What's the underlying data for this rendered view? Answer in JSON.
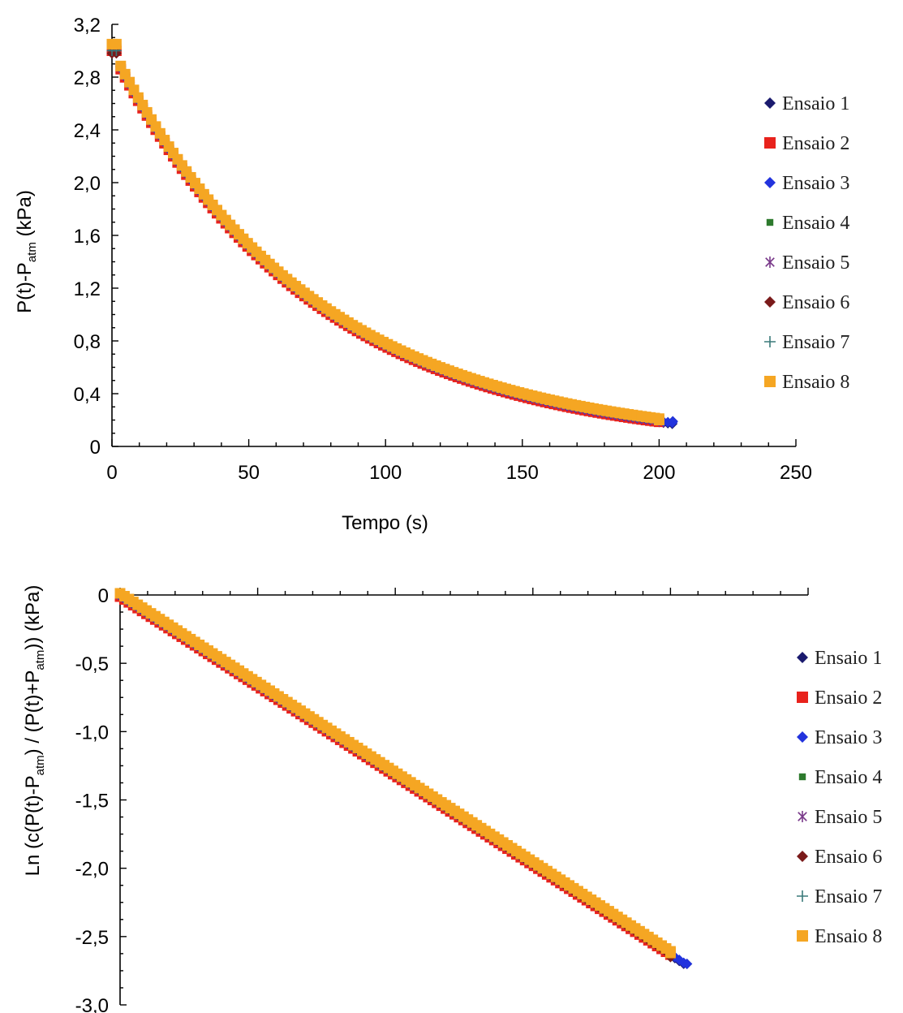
{
  "chart_data": [
    {
      "type": "scatter",
      "xlabel": "Tempo (s)",
      "ylabel_parts": [
        "P(t)-P",
        "atm",
        " (kPa)"
      ],
      "xlim": [
        0,
        250
      ],
      "ylim": [
        0,
        3.2
      ],
      "x_ticks": [
        0,
        50,
        100,
        150,
        200,
        250
      ],
      "x_tick_labels": [
        "0",
        "50",
        "100",
        "150",
        "200",
        "250"
      ],
      "y_ticks": [
        0,
        0.4,
        0.8,
        1.2,
        1.6,
        2.0,
        2.4,
        2.8,
        3.2
      ],
      "y_tick_labels": [
        "0",
        "0,4",
        "0,8",
        "1,2",
        "1,6",
        "2,0",
        "2,4",
        "2,8",
        "3,2"
      ],
      "grid": false,
      "legend_position": "right",
      "curve": {
        "form": "exponential_decay",
        "y0": 3.0,
        "rate": 0.0136,
        "x_end": 204,
        "y_end": 0.19
      },
      "series": [
        {
          "name": "Ensaio 1",
          "marker": "diamond",
          "color": "#1a1a6e",
          "x": [
            0,
            50,
            100,
            150,
            205
          ],
          "y": [
            3.05,
            1.5,
            0.75,
            0.38,
            0.19
          ]
        },
        {
          "name": "Ensaio 2",
          "marker": "square",
          "color": "#e8221c",
          "x": [
            0,
            50,
            100,
            150,
            200
          ],
          "y": [
            3.0,
            1.48,
            0.74,
            0.38,
            0.2
          ]
        },
        {
          "name": "Ensaio 3",
          "marker": "diamond",
          "color": "#2233dd",
          "x": [
            0,
            50,
            100,
            150,
            205
          ],
          "y": [
            3.02,
            1.5,
            0.75,
            0.38,
            0.19
          ]
        },
        {
          "name": "Ensaio 4",
          "marker": "small-square",
          "color": "#2d7a2d",
          "x": [
            0,
            50,
            100,
            150,
            200
          ],
          "y": [
            3.01,
            1.49,
            0.75,
            0.38,
            0.2
          ]
        },
        {
          "name": "Ensaio 5",
          "marker": "asterisk",
          "color": "#7a3a8a",
          "x": [
            0,
            50,
            100,
            150,
            200
          ],
          "y": [
            3.0,
            1.49,
            0.75,
            0.38,
            0.2
          ]
        },
        {
          "name": "Ensaio 6",
          "marker": "circle",
          "color": "#7a1a1a",
          "x": [
            0,
            50,
            100,
            150,
            200
          ],
          "y": [
            2.98,
            1.46,
            0.73,
            0.37,
            0.2
          ]
        },
        {
          "name": "Ensaio 7",
          "marker": "plus",
          "color": "#3a7a7a",
          "x": [
            0,
            50,
            100,
            150,
            200
          ],
          "y": [
            3.0,
            1.49,
            0.75,
            0.38,
            0.2
          ]
        },
        {
          "name": "Ensaio 8",
          "marker": "square",
          "color": "#f5a623",
          "x": [
            0,
            50,
            100,
            150,
            200
          ],
          "y": [
            3.05,
            1.52,
            0.76,
            0.39,
            0.2
          ]
        }
      ]
    },
    {
      "type": "scatter",
      "ylabel_parts": [
        "Ln (c(P(t)-P",
        "atm",
        ") / (P(t)+P",
        "atm",
        ")) (kPa)"
      ],
      "xlim": [
        0,
        250
      ],
      "ylim": [
        -3.0,
        0
      ],
      "y_ticks": [
        0,
        -0.5,
        -1.0,
        -1.5,
        -2.0,
        -2.5,
        -3.0
      ],
      "y_tick_labels": [
        "0",
        "-0,5",
        "-1,0",
        "-1,5",
        "-2,0",
        "-2,5",
        "-3,0"
      ],
      "grid": false,
      "legend_position": "right",
      "curve": {
        "form": "linear",
        "slope": -0.0131,
        "intercept": 0.0,
        "x_end": 206,
        "y_end": -2.7
      },
      "series": [
        {
          "name": "Ensaio 1",
          "marker": "diamond",
          "color": "#1a1a6e",
          "x": [
            0,
            50,
            100,
            150,
            206
          ],
          "y": [
            0.0,
            -0.65,
            -1.3,
            -1.95,
            -2.7
          ]
        },
        {
          "name": "Ensaio 2",
          "marker": "square",
          "color": "#e8221c",
          "x": [
            0,
            50,
            100,
            150,
            200
          ],
          "y": [
            0.0,
            -0.66,
            -1.31,
            -1.97,
            -2.62
          ]
        },
        {
          "name": "Ensaio 3",
          "marker": "diamond",
          "color": "#2233dd",
          "x": [
            0,
            50,
            100,
            150,
            206
          ],
          "y": [
            0.0,
            -0.65,
            -1.3,
            -1.95,
            -2.7
          ]
        },
        {
          "name": "Ensaio 4",
          "marker": "small-square",
          "color": "#2d7a2d",
          "x": [
            0,
            50,
            100,
            150,
            200
          ],
          "y": [
            0.0,
            -0.65,
            -1.3,
            -1.96,
            -2.62
          ]
        },
        {
          "name": "Ensaio 5",
          "marker": "asterisk",
          "color": "#7a3a8a",
          "x": [
            0,
            50,
            100,
            150,
            200
          ],
          "y": [
            0.0,
            -0.65,
            -1.31,
            -1.96,
            -2.62
          ]
        },
        {
          "name": "Ensaio 6",
          "marker": "circle",
          "color": "#7a1a1a",
          "x": [
            0,
            50,
            100,
            150,
            200
          ],
          "y": [
            0.0,
            -0.66,
            -1.32,
            -1.98,
            -2.65
          ]
        },
        {
          "name": "Ensaio 7",
          "marker": "plus",
          "color": "#3a7a7a",
          "x": [
            0,
            50,
            100,
            150,
            200
          ],
          "y": [
            0.0,
            -0.65,
            -1.3,
            -1.96,
            -2.62
          ]
        },
        {
          "name": "Ensaio 8",
          "marker": "square",
          "color": "#f5a623",
          "x": [
            0,
            50,
            100,
            150,
            200
          ],
          "y": [
            0.0,
            -0.65,
            -1.3,
            -1.95,
            -2.62
          ]
        }
      ]
    }
  ]
}
